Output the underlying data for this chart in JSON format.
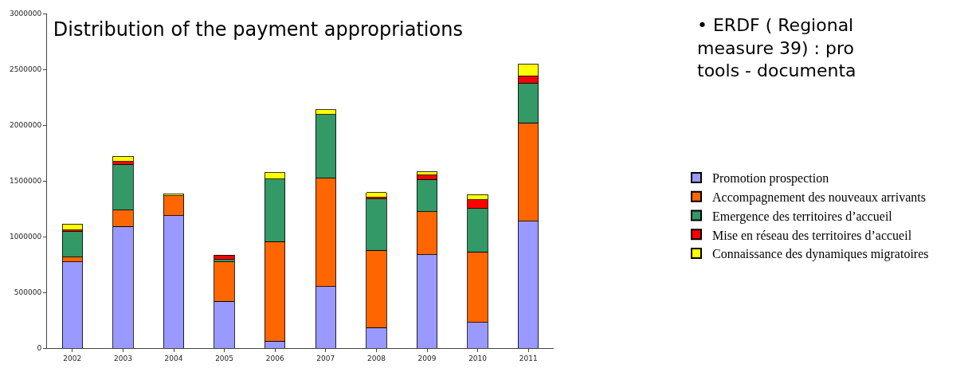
{
  "chart_data": {
    "type": "bar",
    "stacked": true,
    "title": "Distribution of the payment appropriations",
    "categories": [
      "2002",
      "2003",
      "2004",
      "2005",
      "2006",
      "2007",
      "2008",
      "2009",
      "2010",
      "2011"
    ],
    "series": [
      {
        "name": "Promotion prospection",
        "color": "#9999ff",
        "values": [
          775000,
          1090000,
          1188000,
          421000,
          62000,
          553000,
          183000,
          836000,
          231000,
          1139000
        ]
      },
      {
        "name": "Accompagnement des nouveaux arrivants",
        "color": "#ff6600",
        "values": [
          40000,
          148000,
          178000,
          352000,
          892000,
          970000,
          694000,
          389000,
          632000,
          880000
        ]
      },
      {
        "name": "Emergence des territoires d’accueil",
        "color": "#339966",
        "values": [
          231000,
          406000,
          null,
          21000,
          562000,
          572000,
          459000,
          287000,
          389000,
          358000
        ]
      },
      {
        "name": "Mise en réseau des territoires d’accueil",
        "color": "#ff0000",
        "values": [
          14000,
          30000,
          null,
          39000,
          null,
          null,
          16000,
          41000,
          77000,
          63000
        ]
      },
      {
        "name": "Connaissance des dynamiques migratoires",
        "color": "#ffff00",
        "values": [
          51000,
          44000,
          18000,
          null,
          56000,
          42000,
          41000,
          28000,
          48000,
          104000
        ]
      }
    ],
    "ylim": [
      0,
      3000000
    ],
    "yticks": [
      0,
      500000,
      1000000,
      1500000,
      2000000,
      2500000,
      3000000
    ],
    "legend": "right",
    "annotations": [
      "• ERDF ( Regional\nmeasure 39) : pro\ntools - documenta"
    ]
  }
}
